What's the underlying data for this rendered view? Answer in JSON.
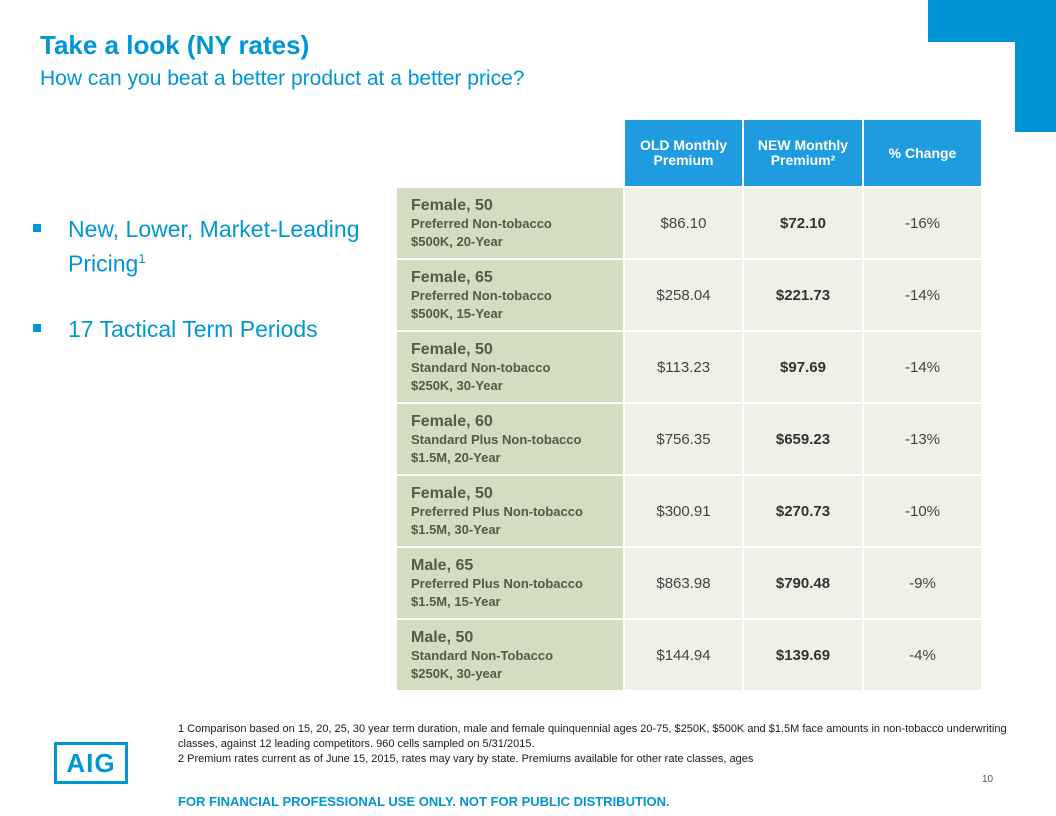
{
  "header": {
    "title": "Take a look (NY rates)",
    "subtitle": "How can you beat a better product at a better price?"
  },
  "bullets": [
    {
      "text": "New, Lower, Market-Leading Pricing",
      "sup": "1"
    },
    {
      "text": "17 Tactical Term Periods"
    }
  ],
  "table": {
    "headers": [
      "OLD Monthly Premium",
      "NEW Monthly Premium²",
      "% Change"
    ],
    "rows": [
      {
        "who": "Female, 50",
        "cls": "Preferred Non-tobacco",
        "amt": "$500K, 20-Year",
        "old": "$86.10",
        "new": "$72.10",
        "chg": "-16%"
      },
      {
        "who": "Female, 65",
        "cls": "Preferred Non-tobacco",
        "amt": "$500K, 15-Year",
        "old": "$258.04",
        "new": "$221.73",
        "chg": "-14%"
      },
      {
        "who": "Female, 50",
        "cls": "Standard Non-tobacco",
        "amt": "$250K, 30-Year",
        "old": "$113.23",
        "new": "$97.69",
        "chg": "-14%"
      },
      {
        "who": "Female, 60",
        "cls": "Standard Plus Non-tobacco",
        "amt": "$1.5M, 20-Year",
        "old": "$756.35",
        "new": "$659.23",
        "chg": "-13%"
      },
      {
        "who": "Female, 50",
        "cls": "Preferred Plus Non-tobacco",
        "amt": "$1.5M, 30-Year",
        "old": "$300.91",
        "new": "$270.73",
        "chg": "-10%"
      },
      {
        "who": "Male, 65",
        "cls": "Preferred Plus Non-tobacco",
        "amt": "$1.5M, 15-Year",
        "old": "$863.98",
        "new": "$790.48",
        "chg": "-9%"
      },
      {
        "who": "Male, 50",
        "cls": "Standard Non-Tobacco",
        "amt": "$250K, 30-year",
        "old": "$144.94",
        "new": "$139.69",
        "chg": "-4%"
      }
    ]
  },
  "footnotes": {
    "note1": "1 Comparison based on 15, 20, 25, 30 year term duration, male and female quinquennial ages 20-75, $250K, $500K and $1.5M face amounts in non-tobacco underwriting classes, against 12 leading competitors. 960 cells sampled on 5/31/2015.",
    "note2": "2 Premium rates current as of June 15, 2015, rates may vary by state. Premiums available for other rate classes, ages"
  },
  "logo": {
    "text": "AIG",
    "icon": "aig-logo"
  },
  "page_number": "10",
  "disclaimer": "FOR FINANCIAL PROFESSIONAL USE ONLY. NOT FOR PUBLIC DISTRIBUTION.",
  "colors": {
    "brand_blue": "#0096d6",
    "header_blue": "#1f9be0",
    "label_green": "#d4ddc2",
    "cell_green": "#eef2e6"
  }
}
